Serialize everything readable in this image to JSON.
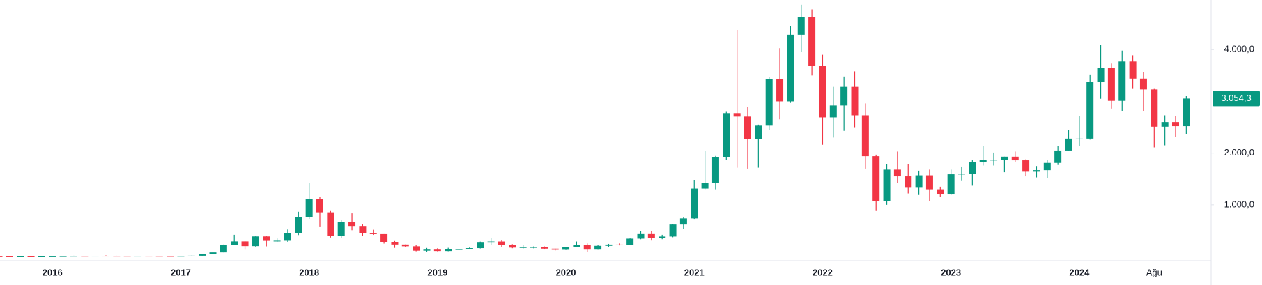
{
  "chart_data": {
    "type": "candlestick",
    "categories": [
      null,
      null,
      null,
      null,
      null,
      "2016",
      null,
      null,
      null,
      null,
      null,
      null,
      null,
      null,
      null,
      null,
      null,
      "2017",
      null,
      null,
      null,
      null,
      null,
      null,
      null,
      null,
      null,
      null,
      null,
      "2018",
      null,
      null,
      null,
      null,
      null,
      null,
      null,
      null,
      null,
      null,
      null,
      "2019",
      null,
      null,
      null,
      null,
      null,
      null,
      null,
      null,
      null,
      null,
      null,
      "2020",
      null,
      null,
      null,
      null,
      null,
      null,
      null,
      null,
      null,
      null,
      null,
      "2021",
      null,
      null,
      null,
      null,
      null,
      null,
      null,
      null,
      null,
      null,
      null,
      "2022",
      null,
      null,
      null,
      null,
      null,
      null,
      null,
      null,
      null,
      null,
      null,
      "2023",
      null,
      null,
      null,
      null,
      null,
      null,
      null,
      null,
      null,
      null,
      null,
      "2024",
      null,
      null,
      null,
      null,
      null,
      null,
      "Ağu",
      null,
      null,
      null
    ],
    "open": [
      2.8,
      1.3,
      0.9,
      1.0,
      0.9,
      0.9,
      2.2,
      6.3,
      11.4,
      8.8,
      14.0,
      12.2,
      11.7,
      11.6,
      13.1,
      10.9,
      8.6,
      8.0,
      10.7,
      15.7,
      50.6,
      79.8,
      230,
      292,
      201,
      388,
      303,
      305,
      446,
      756,
      1118,
      855,
      396,
      670,
      578,
      454,
      433,
      283,
      232,
      198,
      113,
      133,
      107,
      136,
      141,
      162,
      268,
      290,
      218,
      172,
      180,
      182,
      152,
      130,
      179,
      217,
      133,
      206,
      231,
      226,
      345,
      434,
      360,
      386,
      619,
      737,
      1314,
      1418,
      1918,
      2773,
      2705,
      2274,
      2530,
      3433,
      3000,
      4288,
      4630,
      3680,
      2690,
      2920,
      3280,
      2730,
      1940,
      1070,
      1680,
      1550,
      1330,
      1570,
      1300,
      1200,
      1590,
      1600,
      1820,
      1870,
      1870,
      1930,
      1860,
      1640,
      1670,
      1810,
      2050,
      2280,
      2280,
      3380,
      3640,
      3010,
      3770,
      3440,
      3230,
      2510,
      2600,
      2520
    ],
    "high": [
      2.8,
      1.4,
      1.3,
      1.1,
      1.0,
      2.6,
      6.7,
      15.3,
      12.5,
      14.3,
      21.5,
      14.8,
      12.0,
      14.4,
      13.2,
      11.3,
      8.6,
      11.4,
      16.0,
      53.0,
      80.0,
      232,
      420,
      296,
      392,
      400,
      349,
      523,
      866,
      1424,
      1160,
      880,
      700,
      835,
      620,
      518,
      433,
      300,
      234,
      222,
      165,
      160,
      168,
      149,
      187,
      288,
      362,
      320,
      239,
      223,
      197,
      195,
      153,
      184,
      290,
      253,
      227,
      244,
      253,
      350,
      488,
      489,
      420,
      622,
      755,
      1475,
      2040,
      1944,
      2797,
      4380,
      2891,
      2550,
      3470,
      4027,
      4460,
      4868,
      4778,
      3900,
      3280,
      3480,
      3580,
      2960,
      1970,
      1780,
      2030,
      1790,
      1660,
      1680,
      1350,
      1680,
      1740,
      1860,
      2140,
      2010,
      1930,
      2030,
      1880,
      1750,
      1860,
      2130,
      2450,
      2720,
      3520,
      4090,
      3730,
      3980,
      3890,
      3560,
      3240,
      2730,
      2720,
      3100
    ],
    "low": [
      0.6,
      0.6,
      0.4,
      0.8,
      0.8,
      0.9,
      2.2,
      6.1,
      6.9,
      8.2,
      10.2,
      10.6,
      10.0,
      11.3,
      10.9,
      8.1,
      6.8,
      8.0,
      10.5,
      15.5,
      42.7,
      79.8,
      217,
      131,
      190,
      196,
      281,
      284,
      415,
      720,
      568,
      367,
      360,
      509,
      404,
      418,
      250,
      167,
      188,
      101,
      82,
      100,
      102,
      126,
      137,
      155,
      230,
      190,
      160,
      153,
      157,
      135,
      116,
      125,
      176,
      90,
      130,
      176,
      215,
      224,
      334,
      308,
      335,
      373,
      530,
      714,
      1302,
      1300,
      1871,
      1717,
      1700,
      1718,
      2450,
      2652,
      2970,
      3960,
      3500,
      2160,
      2300,
      2430,
      2500,
      1700,
      880,
      1000,
      1420,
      1220,
      1190,
      1070,
      1160,
      1190,
      1460,
      1370,
      1760,
      1760,
      1630,
      1830,
      1550,
      1530,
      1520,
      1770,
      2050,
      2140,
      2260,
      3050,
      2860,
      2810,
      3240,
      2810,
      2110,
      2150,
      2310,
      2360
    ],
    "close": [
      1.3,
      0.9,
      1.0,
      0.9,
      0.9,
      2.2,
      6.3,
      11.4,
      8.8,
      14.0,
      12.2,
      11.7,
      11.6,
      13.1,
      10.9,
      8.6,
      8.0,
      10.7,
      15.7,
      50.6,
      79.8,
      230,
      292,
      201,
      388,
      303,
      305,
      446,
      756,
      1118,
      855,
      396,
      670,
      578,
      454,
      433,
      283,
      232,
      198,
      113,
      133,
      107,
      136,
      141,
      162,
      268,
      290,
      218,
      172,
      180,
      182,
      152,
      130,
      179,
      217,
      133,
      206,
      231,
      226,
      345,
      434,
      360,
      386,
      619,
      737,
      1314,
      1418,
      1918,
      2773,
      2705,
      2274,
      2530,
      3433,
      3000,
      4288,
      4630,
      3680,
      2690,
      2920,
      3280,
      2730,
      1940,
      1070,
      1680,
      1550,
      1330,
      1570,
      1300,
      1200,
      1590,
      1600,
      1820,
      1870,
      1870,
      1930,
      1860,
      1640,
      1670,
      1810,
      2050,
      2280,
      2280,
      3380,
      3640,
      3010,
      3770,
      3440,
      3230,
      2510,
      2600,
      2520,
      3054.3
    ],
    "up_color": "#089981",
    "down_color": "#f23645",
    "ylim": [
      -80,
      4960
    ],
    "yticks": [
      {
        "value": 1000,
        "label": "1.000,0"
      },
      {
        "value": 2000,
        "label": "2.000,0"
      },
      {
        "value": 4000,
        "label": "4.000,0"
      }
    ],
    "last_price": {
      "value": 3054.3,
      "label": "3.054,3"
    }
  }
}
